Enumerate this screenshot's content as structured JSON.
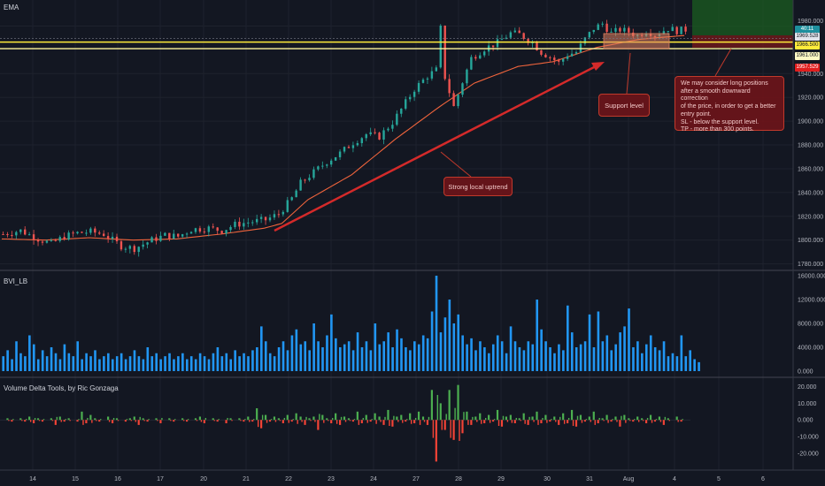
{
  "main_pane": {
    "title": "EMA"
  },
  "bvi_pane": {
    "title": "BVI_LB"
  },
  "vd_pane": {
    "title": "Volume Delta Tools, by Ric Gonzaga"
  },
  "price_badges": [
    {
      "text": "40:11",
      "color": "#1e8f9e",
      "text_color": "#ffffff"
    },
    {
      "text": "1969.528",
      "color": "#e0e3eb",
      "text_color": "#131722"
    },
    {
      "text": "1966.500",
      "color": "#ffeb3b",
      "text_color": "#131722"
    },
    {
      "text": "1961.000",
      "color": "#fff9c4",
      "text_color": "#131722"
    },
    {
      "text": "1957.529",
      "color": "#e01e1e",
      "text_color": "#ffffff"
    }
  ],
  "annotations": {
    "support": "Support level",
    "uptrend": "Strong local uptrend",
    "strategy": [
      "We may consider long positions",
      "after a smooth downward correction",
      "of the price, in order to get a better",
      "entry point.",
      "SL - below the support level.",
      "TP - more than 300 points."
    ]
  },
  "colors": {
    "up": "#26a69a",
    "down": "#ef5350",
    "ema": "#f0643c",
    "bvi": "#2196f3",
    "vd_up": "#4caf50",
    "vd_down": "#f44336",
    "support": "#ffeb3b",
    "arrow": "#d42a2a"
  },
  "icons": [
    "arrow-line",
    "rectangle-zone"
  ],
  "chart_data": [
    {
      "type": "line",
      "name": "price-pane",
      "x_ticks": [
        "14",
        "15",
        "16",
        "17",
        "20",
        "21",
        "22",
        "23",
        "24",
        "27",
        "28",
        "29",
        "30",
        "31",
        "Aug",
        "4",
        "5",
        "6"
      ],
      "y_ticks": [
        "1780.000",
        "1800.000",
        "1820.000",
        "1840.000",
        "1860.000",
        "1880.000",
        "1900.000",
        "1920.000",
        "1940.000",
        "1980.000"
      ],
      "ylim": [
        1776,
        1990
      ],
      "price_path": [
        [
          0,
          1805
        ],
        [
          4,
          1808
        ],
        [
          8,
          1801
        ],
        [
          11,
          1797
        ],
        [
          14,
          1803
        ],
        [
          17,
          1806
        ],
        [
          20,
          1807
        ],
        [
          23,
          1805
        ],
        [
          27,
          1795
        ],
        [
          30,
          1793
        ],
        [
          34,
          1800
        ],
        [
          37,
          1804
        ],
        [
          40,
          1803
        ],
        [
          43,
          1809
        ],
        [
          47,
          1810
        ],
        [
          50,
          1808
        ],
        [
          53,
          1813
        ],
        [
          56,
          1815
        ],
        [
          60,
          1817
        ],
        [
          63,
          1822
        ],
        [
          66,
          1835
        ],
        [
          68,
          1848
        ],
        [
          71,
          1857
        ],
        [
          74,
          1866
        ],
        [
          77,
          1873
        ],
        [
          80,
          1882
        ],
        [
          83,
          1889
        ],
        [
          86,
          1887
        ],
        [
          89,
          1899
        ],
        [
          91,
          1910
        ],
        [
          94,
          1927
        ],
        [
          97,
          1938
        ],
        [
          99,
          1943
        ],
        [
          100,
          1978
        ],
        [
          101,
          1937
        ],
        [
          103,
          1912
        ],
        [
          105,
          1933
        ],
        [
          107,
          1953
        ],
        [
          110,
          1961
        ],
        [
          113,
          1966
        ],
        [
          116,
          1974
        ],
        [
          118,
          1973
        ],
        [
          121,
          1966
        ],
        [
          123,
          1958
        ],
        [
          125,
          1954
        ],
        [
          127,
          1949
        ],
        [
          129,
          1956
        ],
        [
          131,
          1958
        ],
        [
          133,
          1969
        ],
        [
          135,
          1978
        ],
        [
          137,
          1982
        ],
        [
          139,
          1974
        ],
        [
          141,
          1977
        ],
        [
          143,
          1975
        ],
        [
          145,
          1972
        ],
        [
          147,
          1976
        ],
        [
          149,
          1973
        ],
        [
          152,
          1978
        ],
        [
          154,
          1976
        ],
        [
          156,
          1977
        ]
      ],
      "ema_path": [
        [
          0,
          1801
        ],
        [
          10,
          1800
        ],
        [
          20,
          1802
        ],
        [
          30,
          1800
        ],
        [
          40,
          1801
        ],
        [
          50,
          1805
        ],
        [
          60,
          1810
        ],
        [
          64,
          1814
        ],
        [
          70,
          1834
        ],
        [
          80,
          1855
        ],
        [
          90,
          1885
        ],
        [
          100,
          1912
        ],
        [
          108,
          1932
        ],
        [
          118,
          1946
        ],
        [
          126,
          1950
        ],
        [
          136,
          1962
        ],
        [
          146,
          1969
        ],
        [
          156,
          1972
        ]
      ],
      "support_levels": [
        1966.5,
        1961.0
      ],
      "ema_last": 1957.529,
      "last_price": 1969.528
    },
    {
      "type": "bar",
      "name": "BVI_LB",
      "series": [
        {
          "values": [
            2500,
            3500,
            2000,
            5000,
            3000,
            2500,
            6000,
            4500,
            2000,
            3500,
            2500,
            4000,
            3000,
            2000,
            4500,
            3000,
            2500,
            5000,
            2000,
            3000,
            2500,
            3500,
            2000,
            2500,
            3000,
            2000,
            2500,
            3000,
            2000,
            2500,
            3500,
            2500,
            2000,
            4000,
            2500,
            3000,
            2000,
            2500,
            3000,
            2000,
            2500,
            3000,
            2000,
            2500,
            2000,
            3000,
            2500,
            2000,
            3000,
            4000,
            2500,
            3000,
            2000,
            3500,
            2500,
            3000,
            2500,
            3500,
            4000,
            7500,
            5000,
            3000,
            2500,
            4000,
            5000,
            3500,
            6000,
            7000,
            4500,
            5000,
            3500,
            8000,
            5000,
            4000,
            6000,
            9500,
            5500,
            4000,
            4500,
            5000,
            3500,
            6500,
            4000,
            5000,
            3500,
            8000,
            4500,
            5000,
            6500,
            4000,
            7000,
            5500,
            4000,
            3500,
            5000,
            4500,
            6000,
            5500,
            10000,
            16000,
            6500,
            9000,
            12000,
            8000,
            9500,
            6000,
            4500,
            5500,
            3500,
            5000,
            4000,
            3000,
            4500,
            6000,
            5000,
            3000,
            7500,
            5000,
            4000,
            3500,
            5000,
            4500,
            12000,
            7000,
            5000,
            4000,
            3000,
            4500,
            3500,
            11000,
            6500,
            4000,
            4500,
            5000,
            9500,
            4000,
            10000,
            5000,
            6000,
            3500,
            4500,
            6500,
            7500,
            10500,
            4000,
            5000,
            3000,
            4500,
            6000,
            4000,
            3500,
            5000,
            2500,
            3000,
            2500,
            6000,
            2500,
            3500,
            2000,
            1500
          ]
        }
      ],
      "ylim": [
        0,
        16000
      ],
      "y_ticks": [
        "0.000",
        "4000.000",
        "8000.000",
        "12000.000",
        "16000.000"
      ]
    },
    {
      "type": "area",
      "name": "Volume Delta Tools",
      "series": [
        {
          "values": [
            0,
            1,
            -1,
            0,
            1,
            -1,
            2,
            -2,
            1,
            -1,
            0,
            1,
            -3,
            2,
            -1,
            1,
            0,
            -1,
            5,
            -2,
            3,
            1,
            -1,
            0,
            2,
            -2,
            1,
            0,
            -1,
            1,
            2,
            -3,
            1,
            -1,
            0,
            1,
            -2,
            0,
            1,
            -1,
            0,
            1,
            -1,
            0,
            1,
            2,
            -2,
            0,
            1,
            -1,
            0,
            -2,
            1,
            0,
            1,
            -1,
            2,
            -1,
            7,
            -5,
            3,
            -1,
            2,
            1,
            -2,
            3,
            -1,
            4,
            2,
            -3,
            1,
            2,
            -6,
            3,
            1,
            -2,
            4,
            -3,
            2,
            1,
            -1,
            5,
            -2,
            3,
            -1,
            4,
            2,
            -3,
            6,
            -4,
            2,
            3,
            -1,
            4,
            -2,
            5,
            2,
            -3,
            18,
            -25,
            10,
            -6,
            18,
            -12,
            21,
            -8,
            5,
            -3,
            2,
            4,
            -2,
            3,
            -1,
            6,
            -4,
            2,
            3,
            -2,
            1,
            4,
            -3,
            2,
            5,
            -2,
            3,
            -1,
            2,
            -3,
            4,
            -2,
            6,
            -4,
            3,
            -1,
            2,
            5,
            -2,
            1,
            3,
            -1,
            2,
            -4,
            3,
            1,
            -1,
            2,
            1,
            -2,
            3,
            -1,
            2,
            -3,
            1,
            0,
            2,
            -1
          ]
        }
      ],
      "ylim": [
        -28,
        24
      ],
      "y_ticks": [
        "20.000",
        "10.000",
        "0.000",
        "-10.000",
        "-20.000"
      ]
    }
  ]
}
